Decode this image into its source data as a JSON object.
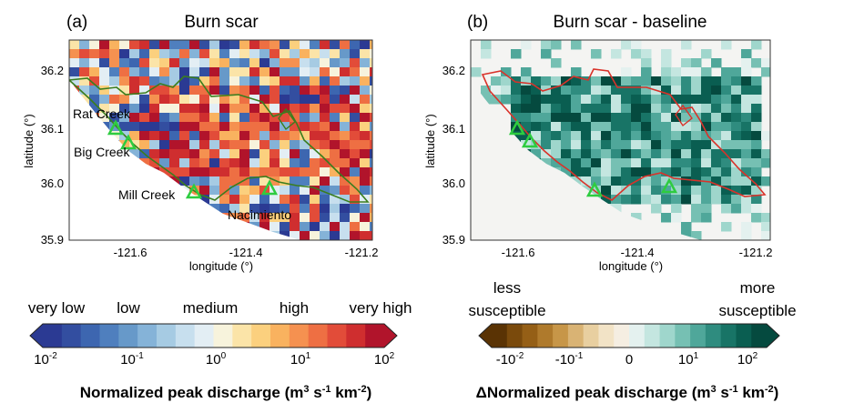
{
  "panels": [
    {
      "tag": "(a)",
      "title": "Burn scar",
      "xlabel": "longitude (°)",
      "ylabel": "latitude (°)",
      "xticks": [
        "-121.6",
        "-121.4",
        "-121.2"
      ],
      "yticks": [
        "36.2",
        "36.1",
        "36.0",
        "35.9"
      ],
      "map_labels": [
        "Rat Creek",
        "Big Creek",
        "Mill Creek",
        "Nacimiento"
      ],
      "outline_color": "#3a7d1e",
      "marker_color": "#2ecc40"
    },
    {
      "tag": "(b)",
      "title": "Burn scar - baseline",
      "xlabel": "longitude (°)",
      "ylabel": "latitude (°)",
      "xticks": [
        "-121.6",
        "-121.4",
        "-121.2"
      ],
      "yticks": [
        "36.2",
        "36.1",
        "36.0",
        "35.9"
      ],
      "outline_color": "#d9322a",
      "marker_color": "#2ecc40"
    }
  ],
  "colorbars": [
    {
      "category_labels": [
        "very low",
        "low",
        "medium",
        "high",
        "very high"
      ],
      "tick_labels": [
        "10-2",
        "10-1",
        "100",
        "101",
        "102"
      ],
      "title": "Normalized peak discharge (m3 s-1 km-2)",
      "colors": [
        "#2b3a93",
        "#334ea0",
        "#3d66b0",
        "#4f7fbe",
        "#6799c9",
        "#85b3d8",
        "#a6cbe3",
        "#c7dfee",
        "#e3eef4",
        "#f7f3dc",
        "#fbe4a8",
        "#fbd07e",
        "#f9b25f",
        "#f59150",
        "#ee6f43",
        "#e24c39",
        "#cf2e2f",
        "#b1142b"
      ]
    },
    {
      "category_labels": [
        "less susceptible",
        "more susceptible"
      ],
      "tick_labels": [
        "-10-2",
        "-10-1",
        "0",
        "101",
        "102"
      ],
      "title": "ΔNormalized peak discharge (m3 s-1 km-2)",
      "colors": [
        "#5a3304",
        "#7a4a0c",
        "#955f16",
        "#af7a2c",
        "#c79648",
        "#d9b374",
        "#e8cfa0",
        "#f2e3c6",
        "#f5eee2",
        "#e4f1ef",
        "#c4e6e0",
        "#9fd6cc",
        "#76c0b3",
        "#4fa79a",
        "#2f8c7f",
        "#187466",
        "#0a5e51",
        "#054a3f"
      ]
    }
  ],
  "chart_data": [
    {
      "type": "heatmap",
      "title": "Burn scar",
      "xlabel": "longitude (°)",
      "ylabel": "latitude (°)",
      "xlim": [
        -121.7,
        -121.2
      ],
      "ylim": [
        35.9,
        36.25
      ],
      "xticks": [
        -121.6,
        -121.4,
        -121.2
      ],
      "yticks": [
        35.9,
        36.0,
        36.1,
        36.2
      ],
      "colorscale": "Normalized peak discharge (m3 s-1 km-2)",
      "color_range_log10": [
        -2,
        2
      ],
      "sites": [
        {
          "name": "Rat Creek",
          "lon": -121.605,
          "lat": 36.09
        },
        {
          "name": "Big Creek",
          "lon": -121.595,
          "lat": 36.07
        },
        {
          "name": "Mill Creek",
          "lon": -121.48,
          "lat": 35.98
        },
        {
          "name": "Nacimiento",
          "lon": -121.36,
          "lat": 35.99
        }
      ]
    },
    {
      "type": "heatmap",
      "title": "Burn scar - baseline",
      "xlabel": "longitude (°)",
      "ylabel": "latitude (°)",
      "xlim": [
        -121.7,
        -121.2
      ],
      "ylim": [
        35.9,
        36.25
      ],
      "xticks": [
        -121.6,
        -121.4,
        -121.2
      ],
      "yticks": [
        35.9,
        36.0,
        36.1,
        36.2
      ],
      "colorscale": "ΔNormalized peak discharge (m3 s-1 km-2)",
      "sites": [
        {
          "lon": -121.605,
          "lat": 36.09
        },
        {
          "lon": -121.595,
          "lat": 36.07
        },
        {
          "lon": -121.48,
          "lat": 35.98
        },
        {
          "lon": -121.36,
          "lat": 35.99
        }
      ]
    }
  ]
}
